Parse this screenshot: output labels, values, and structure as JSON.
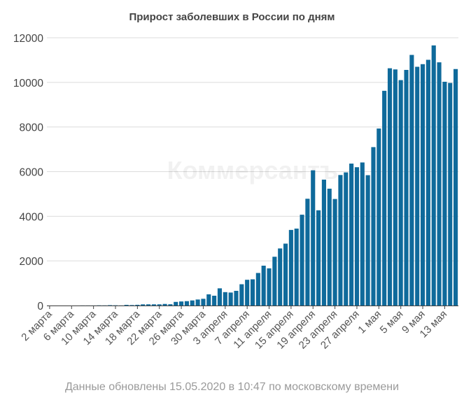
{
  "chart_data": {
    "type": "bar",
    "title": "Прирост заболевших в России по дням",
    "xlabel": "",
    "ylabel": "",
    "ylim": [
      0,
      12000
    ],
    "yticks": [
      0,
      2000,
      4000,
      6000,
      8000,
      10000,
      12000
    ],
    "grid": true,
    "bar_color": "#0f6a9b",
    "categories": [
      "2 марта",
      "3 марта",
      "4 марта",
      "5 марта",
      "6 марта",
      "7 марта",
      "8 марта",
      "9 марта",
      "10 марта",
      "11 марта",
      "12 марта",
      "13 марта",
      "14 марта",
      "15 марта",
      "16 марта",
      "17 марта",
      "18 марта",
      "19 марта",
      "20 марта",
      "21 марта",
      "22 марта",
      "23 марта",
      "24 марта",
      "25 марта",
      "26 марта",
      "27 марта",
      "28 марта",
      "29 марта",
      "30 марта",
      "31 марта",
      "1 апреля",
      "2 апреля",
      "3 апреля",
      "4 апреля",
      "5 апреля",
      "6 апреля",
      "7 апреля",
      "8 апреля",
      "9 апреля",
      "10 апреля",
      "11 апреля",
      "12 апреля",
      "13 апреля",
      "14 апреля",
      "15 апреля",
      "16 апреля",
      "17 апреля",
      "18 апреля",
      "19 апреля",
      "20 апреля",
      "21 апреля",
      "22 апреля",
      "23 апреля",
      "24 апреля",
      "25 апреля",
      "26 апреля",
      "27 апреля",
      "28 апреля",
      "29 апреля",
      "30 апреля",
      "1 мая",
      "2 мая",
      "3 мая",
      "4 мая",
      "5 мая",
      "6 мая",
      "7 мая",
      "8 мая",
      "9 мая",
      "10 мая",
      "11 мая",
      "12 мая",
      "13 мая",
      "14 мая",
      "15 мая"
    ],
    "values": [
      0,
      0,
      0,
      0,
      0,
      0,
      3,
      3,
      3,
      8,
      6,
      17,
      11,
      4,
      30,
      21,
      33,
      52,
      54,
      53,
      53,
      71,
      57,
      163,
      182,
      196,
      228,
      270,
      302,
      501,
      440,
      771,
      601,
      582,
      658,
      954,
      1154,
      1175,
      1459,
      1786,
      1667,
      2186,
      2558,
      2774,
      3388,
      3448,
      4070,
      4785,
      6060,
      4268,
      5642,
      5236,
      4774,
      5849,
      5966,
      6361,
      6198,
      6411,
      5841,
      7099,
      7933,
      9623,
      10633,
      10581,
      10102,
      10559,
      11231,
      10699,
      10817,
      11012,
      11656,
      10899,
      10028,
      9974,
      10598
    ],
    "tick_labels": [
      "2 марта",
      "6 марта",
      "10 марта",
      "14 марта",
      "18 марта",
      "22 марта",
      "26 марта",
      "30 марта",
      "3 апреля",
      "7 апреля",
      "11 апреля",
      "15 апреля",
      "19 апреля",
      "23 апреля",
      "27 апреля",
      "1 мая",
      "5 мая",
      "9 мая",
      "13 мая"
    ]
  },
  "watermark": "Коммерсантъ",
  "footnote": "Данные обновлены 15.05.2020 в 10:47 по московскому времени"
}
